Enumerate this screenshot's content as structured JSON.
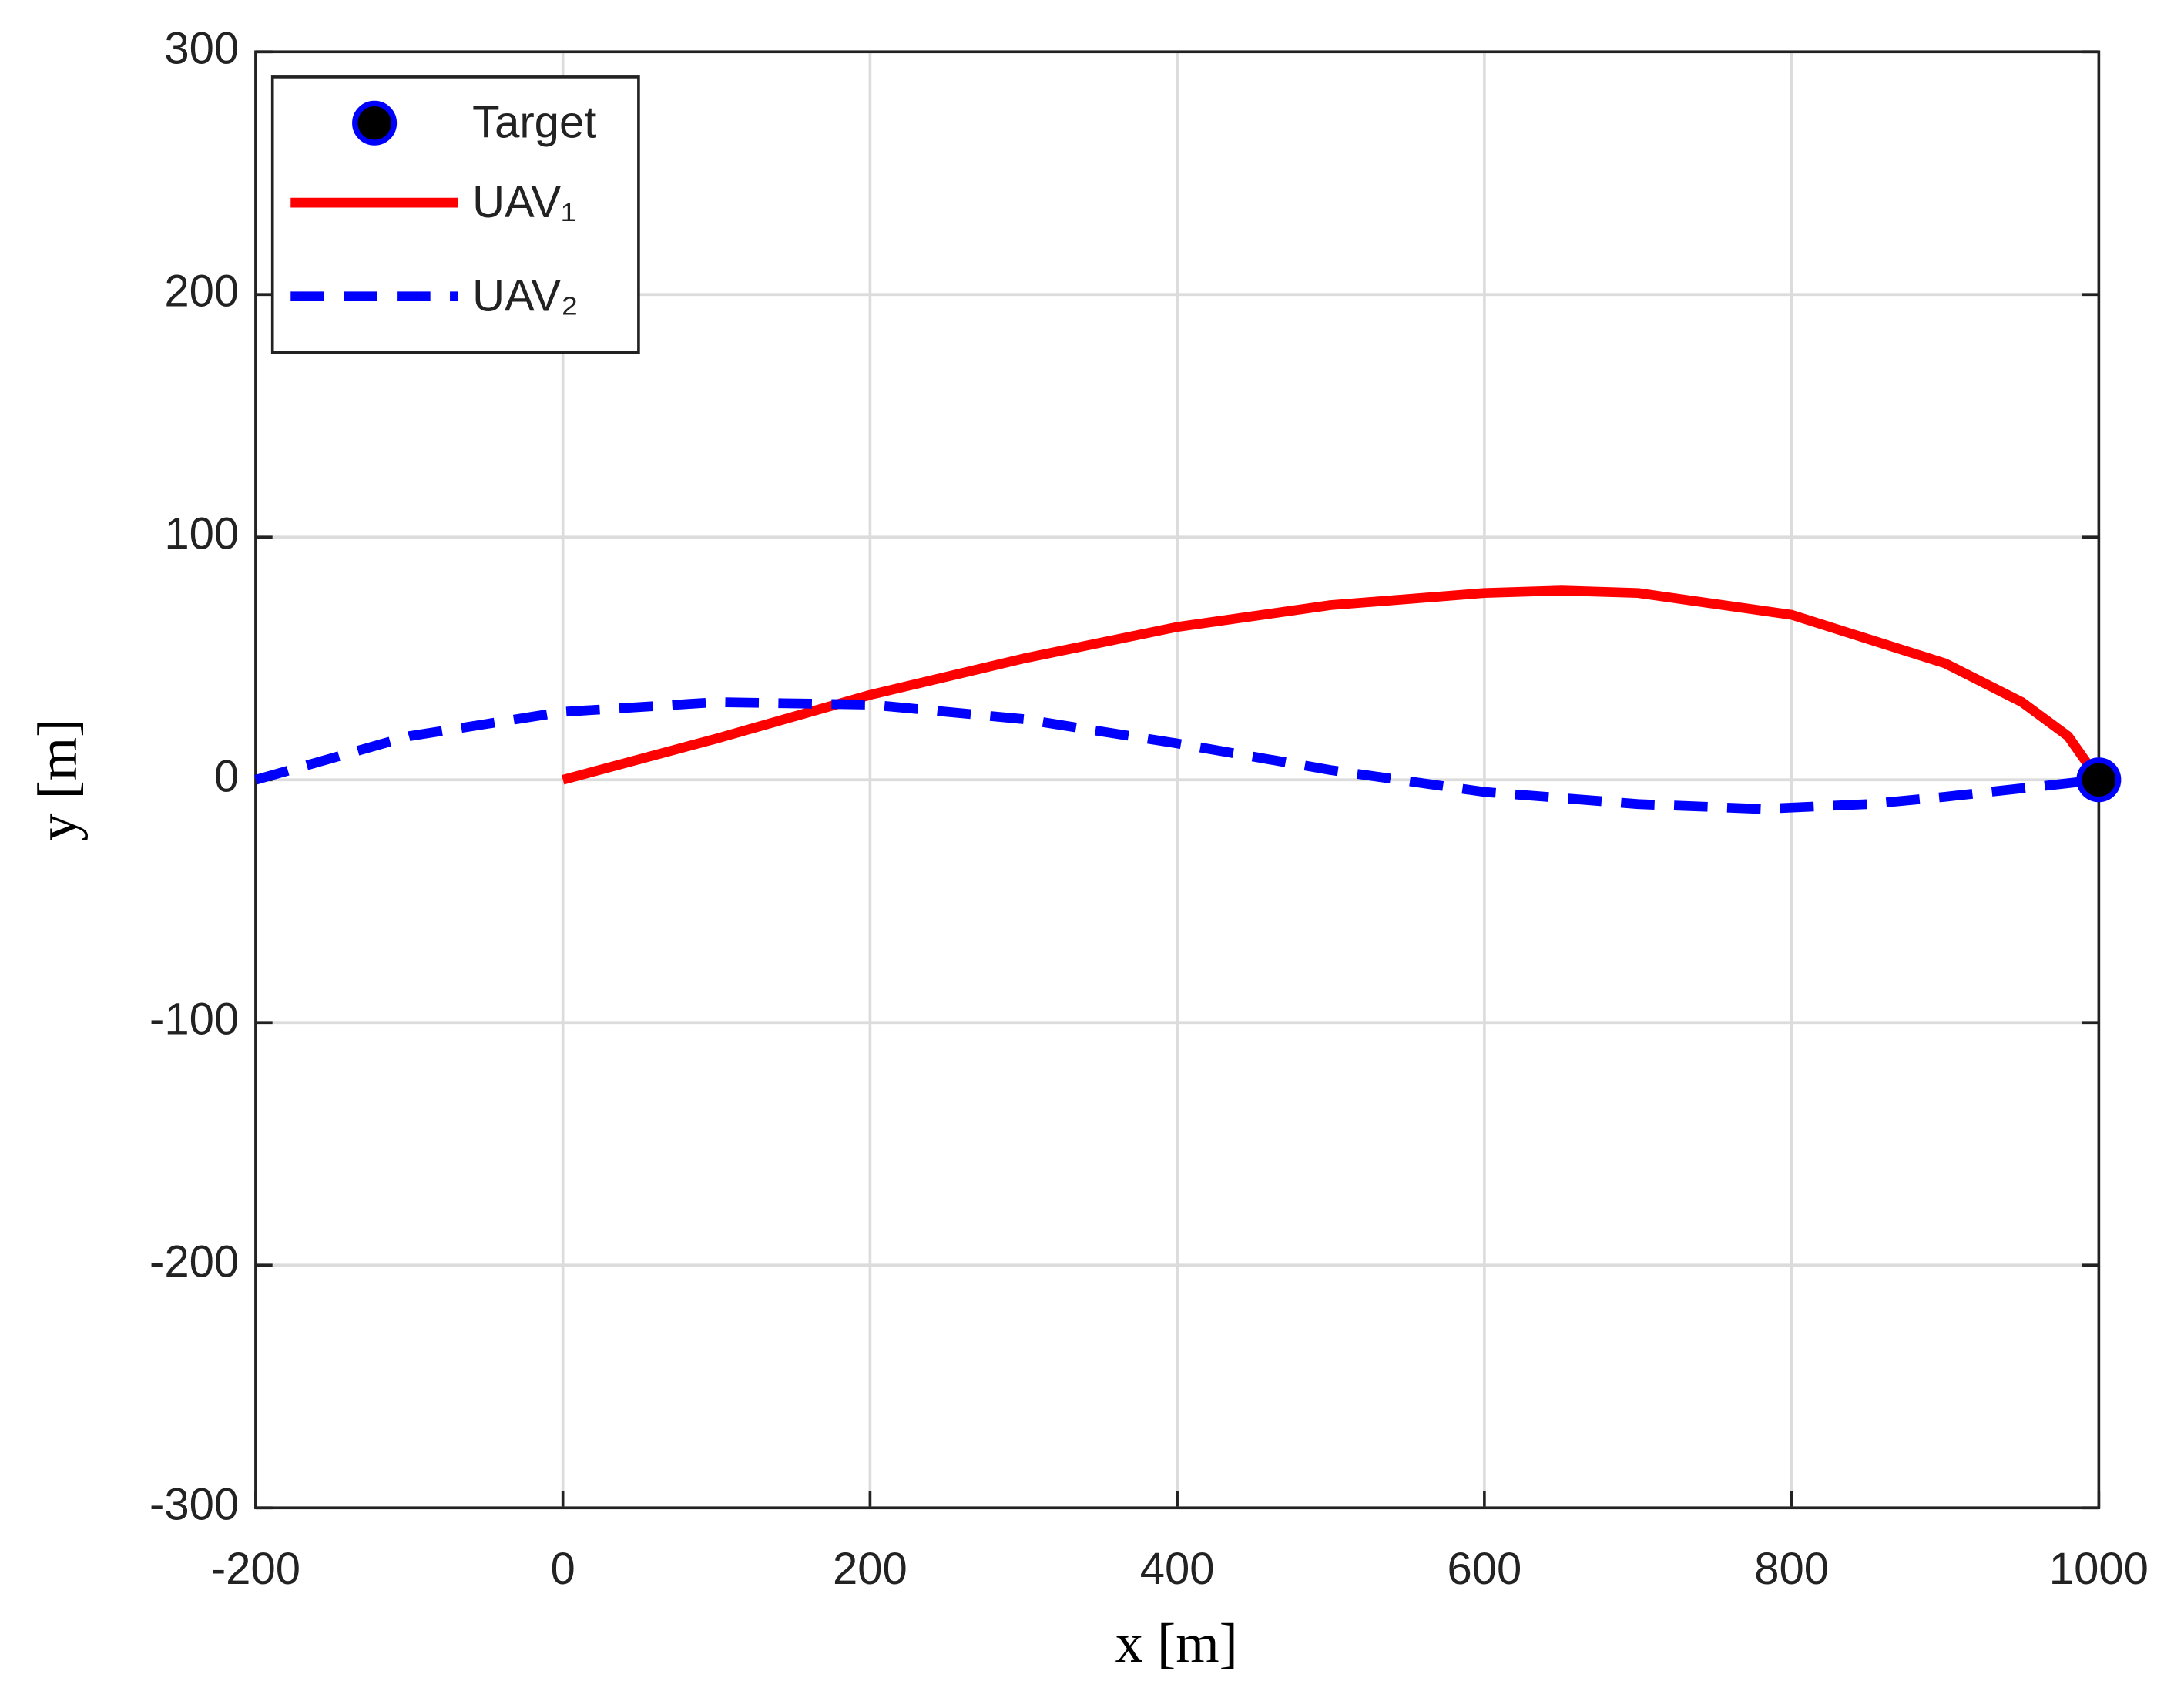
{
  "chart_data": {
    "type": "line",
    "xlabel": "x [m]",
    "ylabel": "y [m]",
    "xlim": [
      -200,
      1000
    ],
    "xticks": [
      -200,
      0,
      200,
      400,
      600,
      800,
      1000
    ],
    "ylim": [
      -300,
      300
    ],
    "yticks": [
      -300,
      -200,
      -100,
      0,
      100,
      200,
      300
    ],
    "grid": true,
    "legend": "upper left",
    "series": [
      {
        "name": "Target",
        "style": "marker",
        "color": "#000000",
        "edgecolor": "#0000ff",
        "x": [
          1000
        ],
        "values": [
          0
        ]
      },
      {
        "name": "UAV₁",
        "style": "solid",
        "color": "#ff0000",
        "x": [
          0,
          100,
          200,
          300,
          400,
          500,
          600,
          650,
          700,
          800,
          900,
          950,
          980,
          1000
        ],
        "values": [
          0,
          17,
          35,
          50,
          63,
          72,
          77,
          78,
          77,
          68,
          48,
          32,
          18,
          0
        ]
      },
      {
        "name": "UAV₂",
        "style": "dashed",
        "color": "#0000ff",
        "x": [
          -200,
          -100,
          0,
          100,
          200,
          300,
          400,
          500,
          600,
          700,
          780,
          850,
          900,
          1000
        ],
        "values": [
          0,
          18,
          28,
          32,
          31,
          25,
          15,
          4,
          -5,
          -10,
          -12,
          -10,
          -7,
          0
        ]
      }
    ]
  }
}
